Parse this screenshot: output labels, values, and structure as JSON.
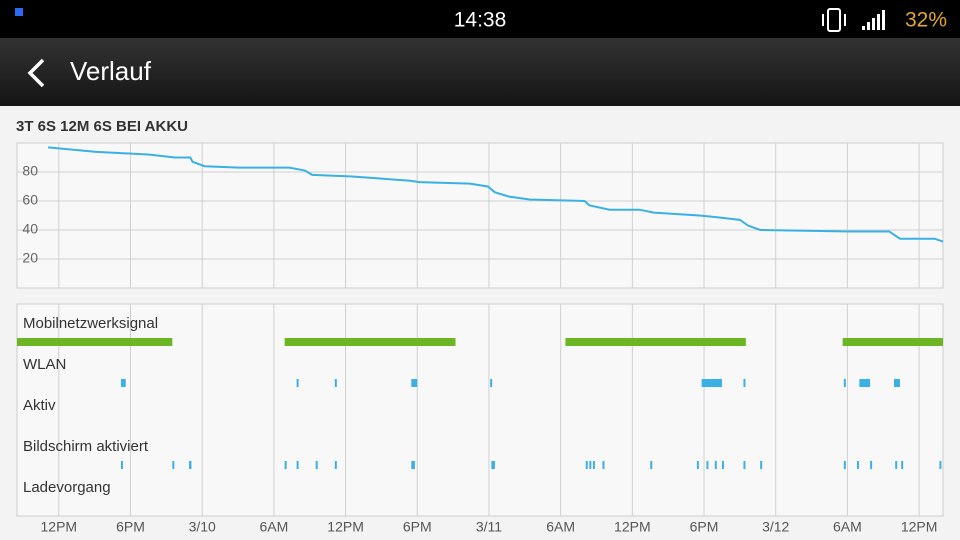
{
  "status_bar": {
    "time": "14:38",
    "battery": "32%"
  },
  "header": {
    "title": "Verlauf"
  },
  "chart_data": [
    {
      "type": "line",
      "title": "3T 6S 12M 6S BEI AKKU",
      "x": [
        11.1,
        15,
        19.6,
        21.7,
        23,
        23.2,
        24.2,
        27.1,
        31.3,
        32.6,
        33.2,
        36.4,
        41.4,
        42.2,
        46.4,
        47.9,
        48.5,
        49.7,
        51.4,
        56,
        56.4,
        58.1,
        60.6,
        61.8,
        65.6,
        66.9,
        69,
        69.7,
        70.7,
        78.2,
        81.5,
        82.4,
        85.3,
        86
      ],
      "series": [
        {
          "color": "#3bb0e4",
          "values": [
            97,
            94,
            92,
            90,
            90,
            87,
            84,
            83,
            83,
            81,
            78,
            77,
            74,
            73,
            72,
            70,
            66,
            63,
            61,
            60,
            57,
            54,
            54,
            52,
            50,
            49,
            47,
            43,
            40,
            39,
            39,
            34,
            34,
            32
          ]
        }
      ],
      "xlim": [
        8.5,
        86
      ],
      "ylim": [
        0,
        100
      ],
      "yticks": [
        20,
        40,
        60,
        80
      ],
      "grid": true
    },
    {
      "type": "timeline",
      "tracks": [
        {
          "name": "Mobilnetzwerksignal",
          "color": "#6cb523",
          "segments": [
            [
              8.5,
              21.5
            ],
            [
              30.9,
              45.2
            ],
            [
              54.4,
              69.5
            ],
            [
              77.6,
              86
            ]
          ]
        },
        {
          "name": "WLAN",
          "color": "#3bb0e4",
          "segments": [
            [
              17.2,
              17.6
            ],
            [
              31.9,
              32.0
            ],
            [
              35.1,
              35.2
            ],
            [
              41.5,
              42.0
            ],
            [
              48.1,
              48.2
            ],
            [
              65.8,
              67.5
            ],
            [
              69.3,
              69.4
            ],
            [
              77.7,
              77.8
            ],
            [
              79.0,
              79.9
            ],
            [
              81.9,
              82.4
            ]
          ]
        },
        {
          "name": "Aktiv",
          "color": "#3bb0e4",
          "segments": []
        },
        {
          "name": "Bildschirm aktiviert",
          "color": "#3bb0e4",
          "segments": [
            [
              17.2,
              17.3
            ],
            [
              21.5,
              21.6
            ],
            [
              22.9,
              23.1
            ],
            [
              30.9,
              31.0
            ],
            [
              31.9,
              32.0
            ],
            [
              33.5,
              33.6
            ],
            [
              35.1,
              35.2
            ],
            [
              41.5,
              41.8
            ],
            [
              48.2,
              48.5
            ],
            [
              56.1,
              56.2
            ],
            [
              56.4,
              56.5
            ],
            [
              56.7,
              56.8
            ],
            [
              57.5,
              57.6
            ],
            [
              61.5,
              61.6
            ],
            [
              65.4,
              65.5
            ],
            [
              66.2,
              66.3
            ],
            [
              66.9,
              67.0
            ],
            [
              67.5,
              67.6
            ],
            [
              69.3,
              69.4
            ],
            [
              70.7,
              70.8
            ],
            [
              77.7,
              77.8
            ],
            [
              78.8,
              78.9
            ],
            [
              79.9,
              80.0
            ],
            [
              82.0,
              82.1
            ],
            [
              82.5,
              82.6
            ],
            [
              85.7,
              85.8
            ]
          ]
        },
        {
          "name": "Ladevorgang",
          "color": "#3bb0e4",
          "segments": []
        }
      ],
      "xlim": [
        8.5,
        86
      ],
      "xticks": [
        {
          "value": 12,
          "label": "12PM"
        },
        {
          "value": 18,
          "label": "6PM"
        },
        {
          "value": 24,
          "label": "3/10"
        },
        {
          "value": 30,
          "label": "6AM"
        },
        {
          "value": 36,
          "label": "12PM"
        },
        {
          "value": 42,
          "label": "6PM"
        },
        {
          "value": 48,
          "label": "3/11"
        },
        {
          "value": 54,
          "label": "6AM"
        },
        {
          "value": 60,
          "label": "12PM"
        },
        {
          "value": 66,
          "label": "6PM"
        },
        {
          "value": 72,
          "label": "3/12"
        },
        {
          "value": 78,
          "label": "6AM"
        },
        {
          "value": 84,
          "label": "12PM"
        }
      ],
      "grid": true
    }
  ]
}
